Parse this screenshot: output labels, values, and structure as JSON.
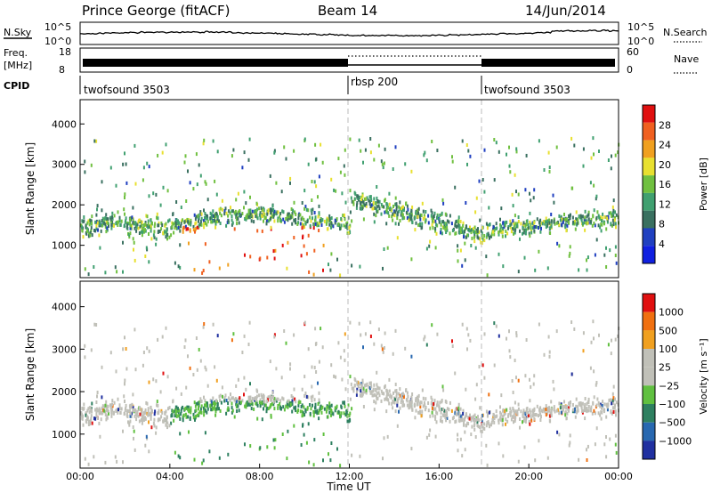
{
  "header": {
    "station": "Prince George (fitACF)",
    "beam": "Beam 14",
    "date": "14/Jun/2014"
  },
  "noise_panel": {
    "left_label": "N.Sky",
    "right_label": "N.Search",
    "tick_top": "10^5",
    "tick_bottom": "10^0"
  },
  "freq_panel": {
    "left_label_1": "Freq.",
    "left_label_2": "[MHz]",
    "right_label": "Nave",
    "tick_freq_top": "18",
    "tick_freq_bottom": "8",
    "tick_nave_top": "60",
    "tick_nave_bottom": "0"
  },
  "cpid": {
    "label": "CPID",
    "segments": [
      {
        "start_hour": 0,
        "name": "twofsound 3503"
      },
      {
        "start_hour": 12,
        "name": "rbsp 200"
      },
      {
        "start_hour": 18,
        "name": "twofsound 3503"
      }
    ]
  },
  "time_axis": {
    "label": "Time UT",
    "ticks": [
      "00:00",
      "04:00",
      "08:00",
      "12:00",
      "16:00",
      "20:00",
      "00:00"
    ]
  },
  "chart_data": [
    {
      "type": "heatmap",
      "name": "power",
      "ylabel": "Slant Range [km]",
      "yticks": [
        "1000",
        "2000",
        "3000",
        "4000"
      ],
      "ylim": [
        200,
        4600
      ],
      "xlim_hours": [
        0,
        24
      ],
      "colorbar_label": "Power [dB]",
      "colorbar_ticks": [
        "4",
        "8",
        "12",
        "16",
        "20",
        "24",
        "28"
      ],
      "colorbar_range": [
        0,
        32
      ],
      "colorscale": [
        "#1020e0",
        "#2040c0",
        "#3a7060",
        "#40a070",
        "#70c040",
        "#e8e030",
        "#f0a020",
        "#f06020",
        "#e01010"
      ]
    },
    {
      "type": "heatmap",
      "name": "velocity",
      "ylabel": "Slant Range [km]",
      "yticks": [
        "1000",
        "2000",
        "3000",
        "4000"
      ],
      "ylim": [
        200,
        4600
      ],
      "xlim_hours": [
        0,
        24
      ],
      "colorbar_label": "Velocity [m s⁻¹]",
      "colorbar_ticks": [
        "1000",
        "500",
        "100",
        "25",
        "−25",
        "−100",
        "−500",
        "−1000"
      ],
      "colorscale": [
        "#2030a0",
        "#2868b0",
        "#2e8060",
        "#60c040",
        "#c0c0b8",
        "#c0c0b8",
        "#f0a020",
        "#f07010",
        "#e01010"
      ]
    }
  ]
}
